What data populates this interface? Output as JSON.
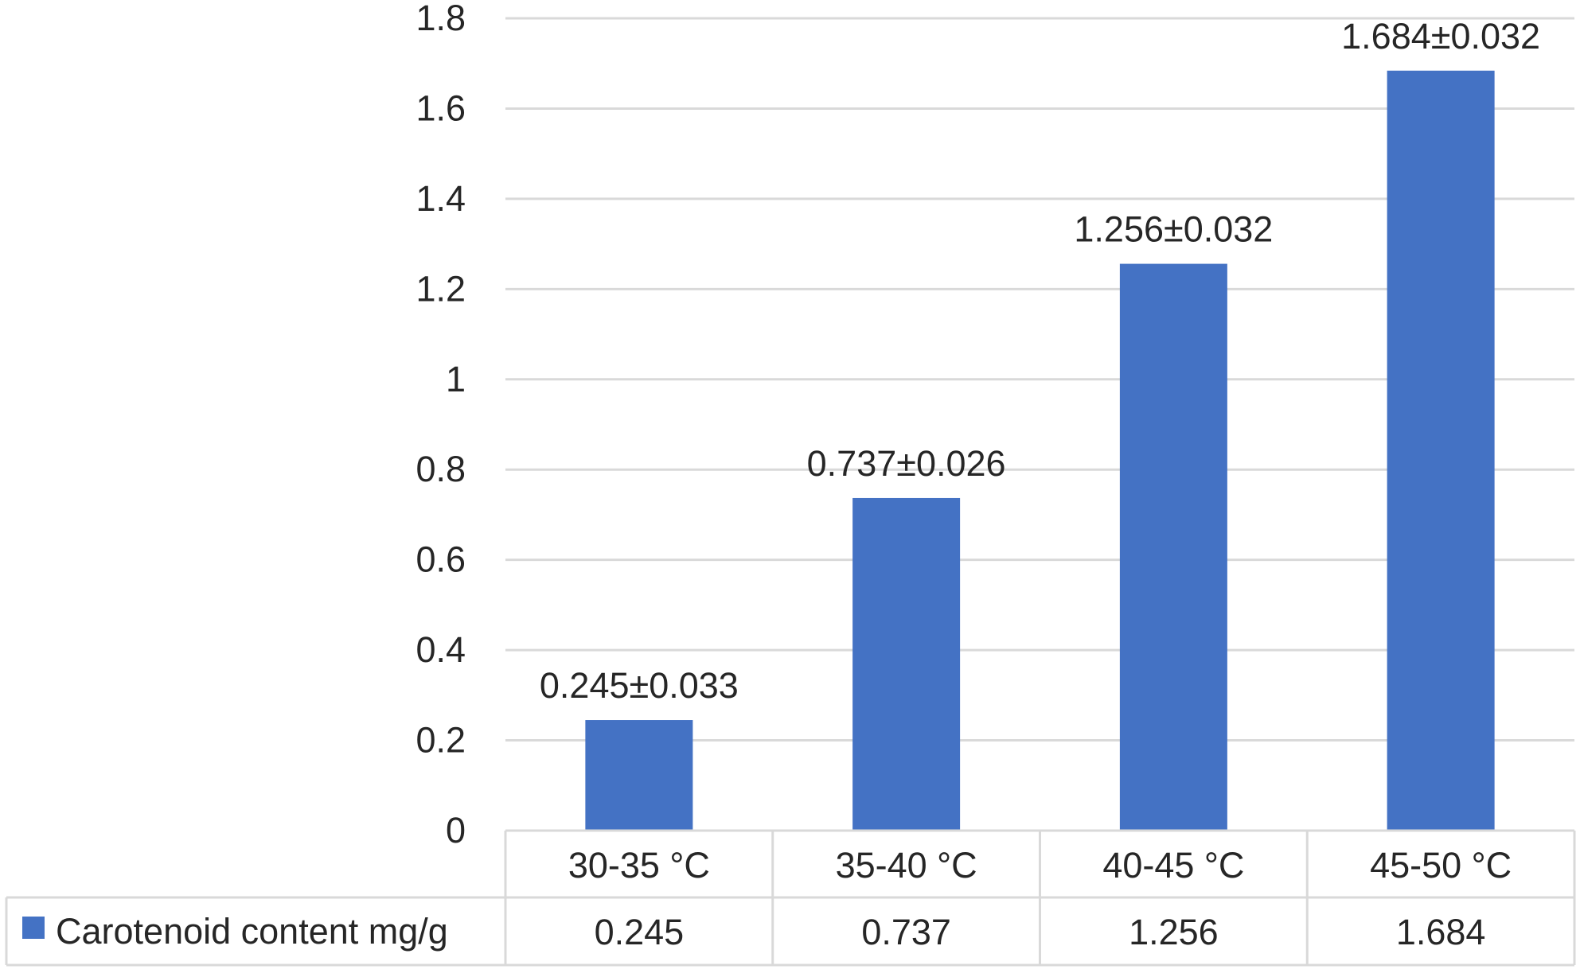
{
  "chart_data": {
    "type": "bar",
    "categories": [
      "30-35 °C",
      "35-40 °C",
      "40-45 °C",
      "45-50 °C"
    ],
    "series": [
      {
        "name": "Carotenoid content mg/g",
        "values": [
          0.245,
          0.737,
          1.256,
          1.684
        ],
        "errors": [
          0.033,
          0.026,
          0.032,
          0.032
        ],
        "data_labels": [
          "0.245±0.033",
          "0.737±0.026",
          "1.256±0.032",
          "1.684±0.032"
        ],
        "table_values": [
          "0.245",
          "0.737",
          "1.256",
          "1.684"
        ],
        "color": "#4472C4"
      }
    ],
    "ylim": [
      0,
      1.8
    ],
    "yticks": [
      0,
      0.2,
      0.4,
      0.6,
      0.8,
      1,
      1.2,
      1.4,
      1.6,
      1.8
    ],
    "ytick_labels": [
      "0",
      "0.2",
      "0.4",
      "0.6",
      "0.8",
      "1",
      "1.2",
      "1.4",
      "1.6",
      "1.8"
    ],
    "grid": true,
    "legend": "data-table",
    "title": "",
    "xlabel": "",
    "ylabel": ""
  }
}
